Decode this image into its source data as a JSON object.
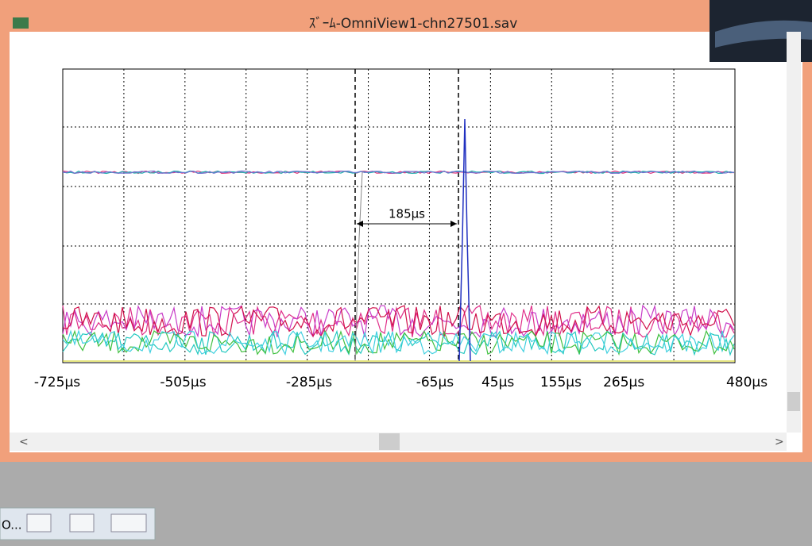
{
  "window": {
    "title": "ｽﾞｰﾑ-OmniView1-chn27501.sav"
  },
  "plot": {
    "xlim": [
      -725,
      480
    ],
    "xticks": [
      {
        "value": -725,
        "label": "-725μs"
      },
      {
        "value": -505,
        "label": "-505μs"
      },
      {
        "value": -285,
        "label": "-285μs"
      },
      {
        "value": -65,
        "label": "-65μs"
      },
      {
        "value": 45,
        "label": "45μs"
      },
      {
        "value": 155,
        "label": "155μs"
      },
      {
        "value": 265,
        "label": "265μs"
      },
      {
        "value": 480,
        "label": "480μs"
      }
    ],
    "annotation": "185μs"
  },
  "taskbar": {
    "label": "O..."
  }
}
